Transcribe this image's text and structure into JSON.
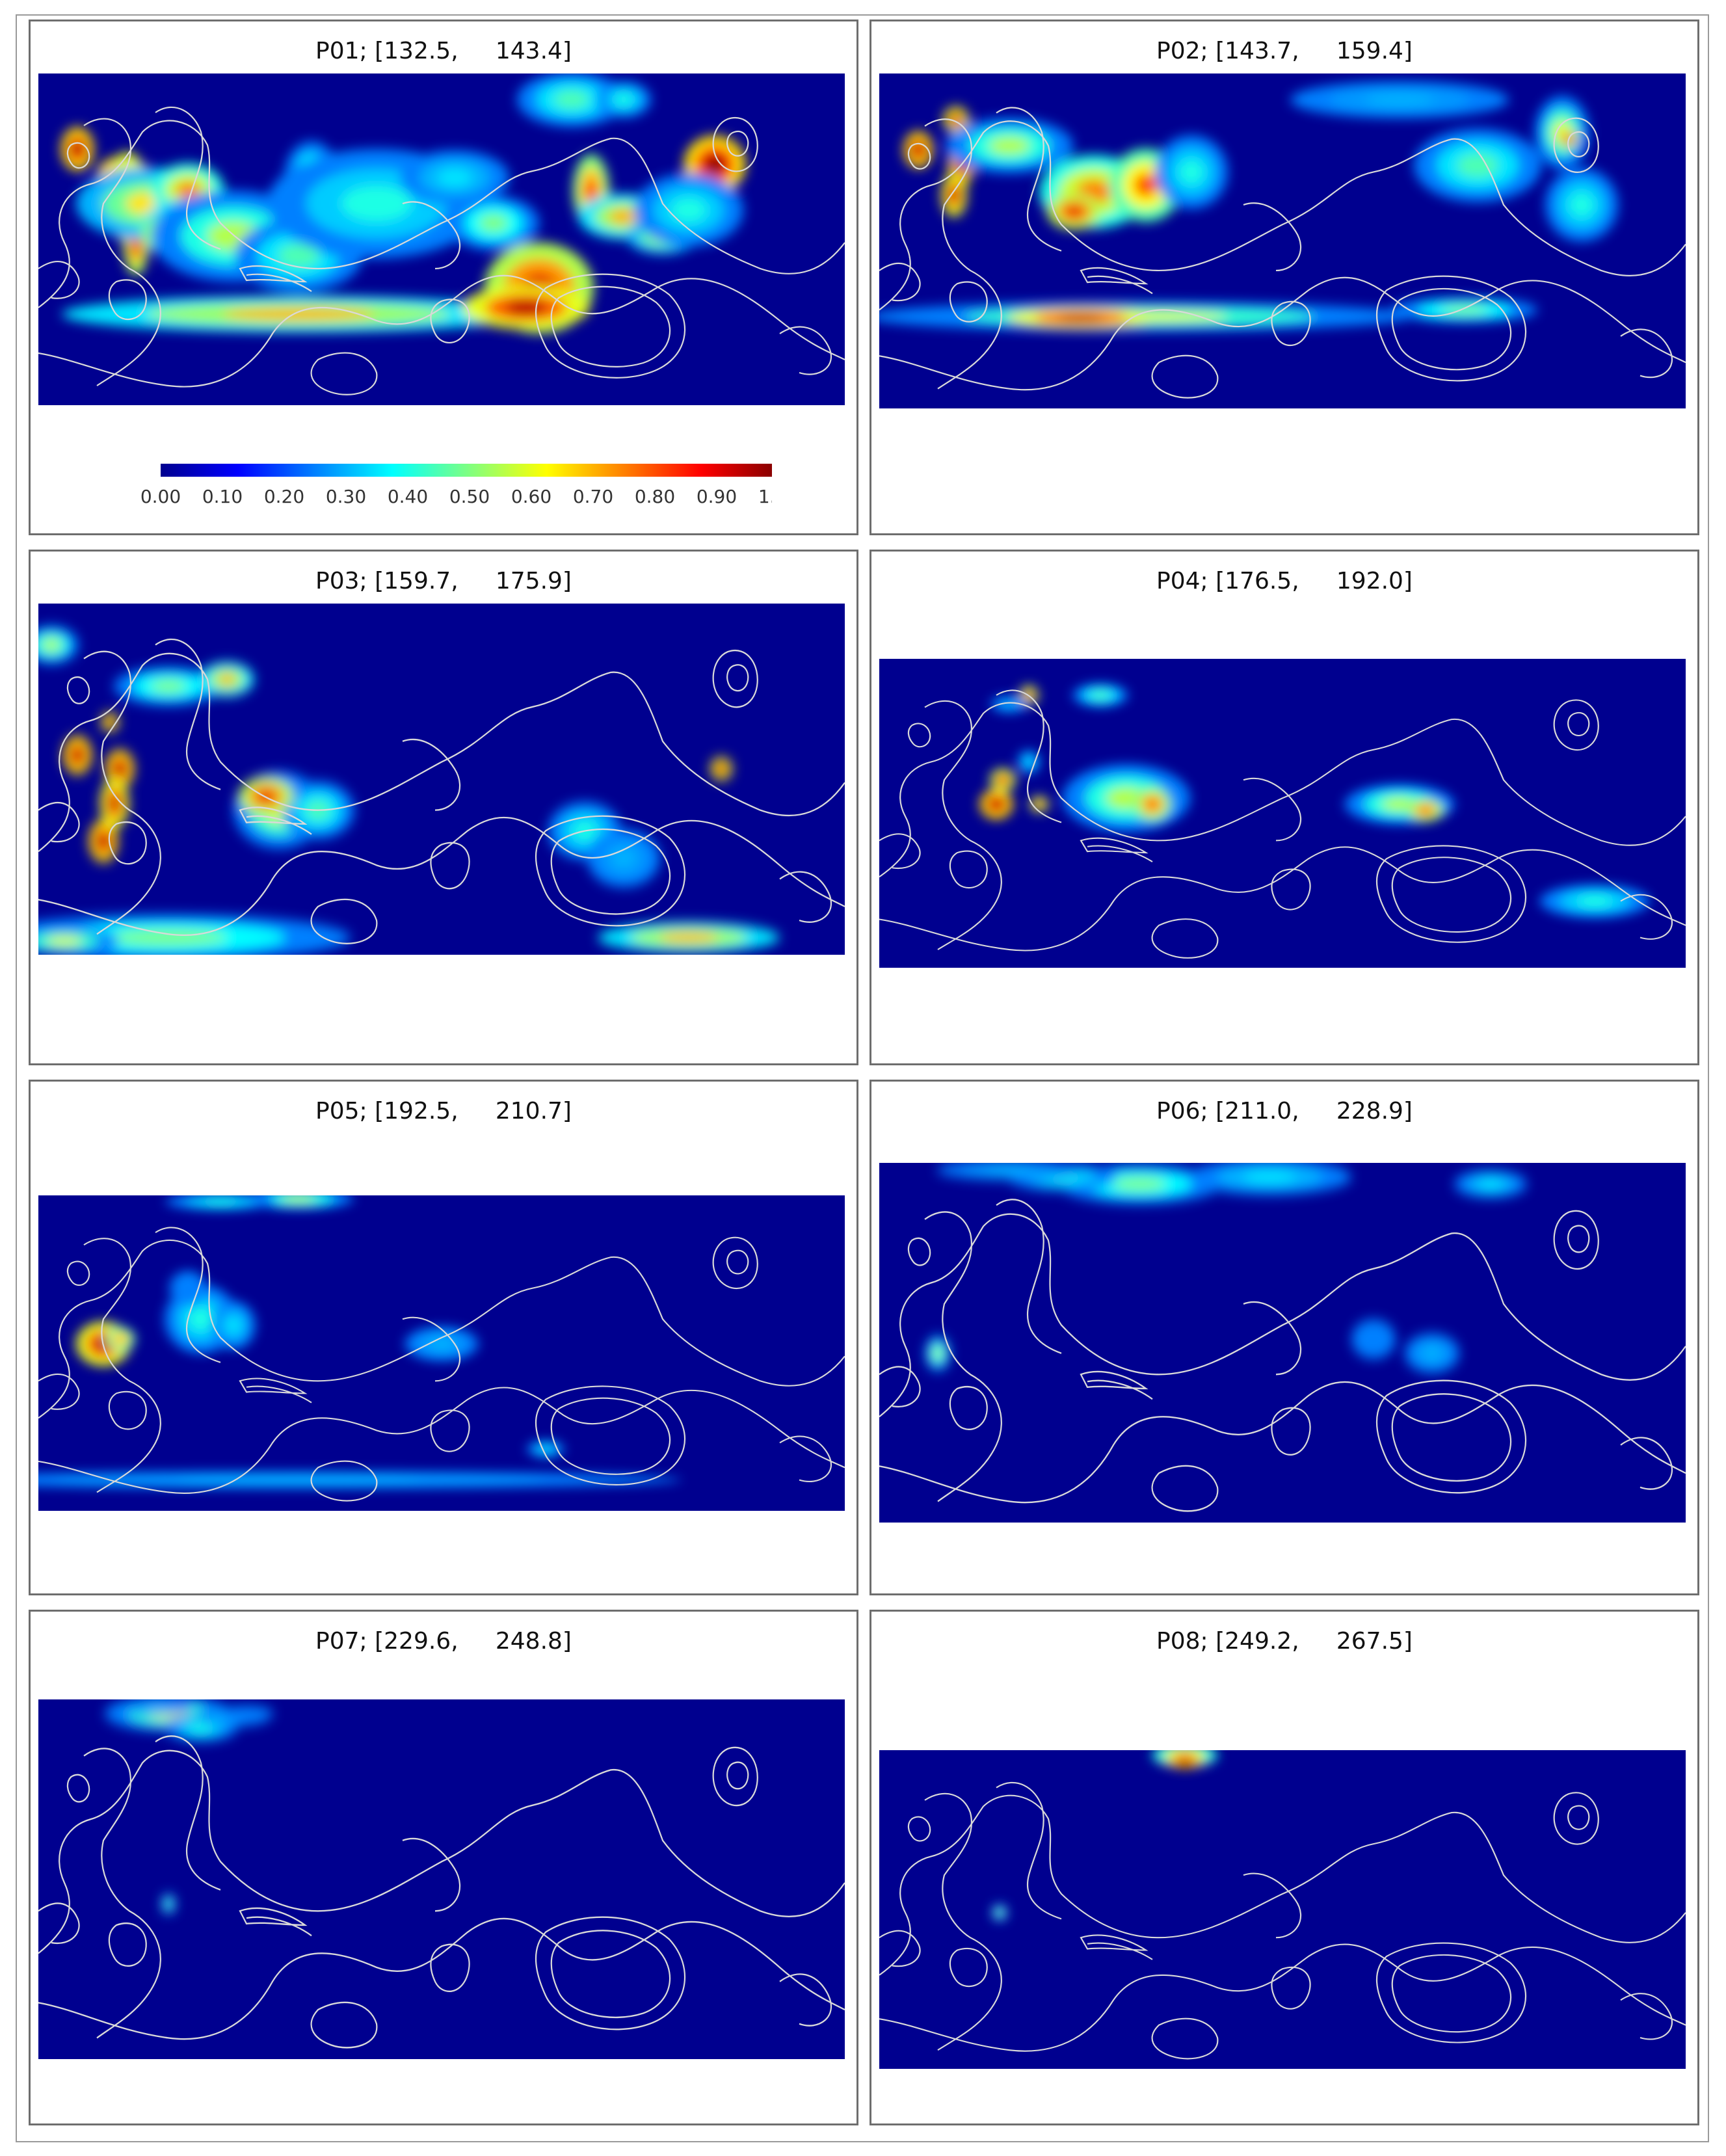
{
  "figure": {
    "panels": [
      {
        "id": "P01",
        "title": "P01; [132.5,     143.4]",
        "blobs": [
          [
            60,
            116,
            18,
            24,
            1.0
          ],
          [
            130,
            155,
            28,
            20,
            1.0
          ],
          [
            137,
            190,
            22,
            50,
            0.95
          ],
          [
            150,
            260,
            14,
            36,
            0.9
          ],
          [
            170,
            200,
            80,
            40,
            0.65
          ],
          [
            230,
            180,
            40,
            30,
            0.75
          ],
          [
            240,
            240,
            60,
            35,
            0.7
          ],
          [
            200,
            245,
            30,
            20,
            0.85
          ],
          [
            300,
            250,
            90,
            50,
            0.55
          ],
          [
            400,
            280,
            70,
            40,
            0.45
          ],
          [
            460,
            240,
            30,
            30,
            0.6
          ],
          [
            420,
            160,
            30,
            40,
            0.5
          ],
          [
            520,
            200,
            120,
            60,
            0.4
          ],
          [
            640,
            160,
            60,
            30,
            0.35
          ],
          [
            700,
            230,
            50,
            30,
            0.5
          ],
          [
            770,
            330,
            60,
            50,
            0.9
          ],
          [
            850,
            180,
            20,
            40,
            0.85
          ],
          [
            900,
            220,
            50,
            25,
            0.7
          ],
          [
            960,
            250,
            40,
            20,
            0.65
          ],
          [
            1040,
            140,
            34,
            32,
            1.0
          ],
          [
            1000,
            210,
            60,
            40,
            0.4
          ],
          [
            820,
            40,
            60,
            30,
            0.45
          ],
          [
            900,
            40,
            30,
            20,
            0.4
          ],
          [
            400,
            370,
            260,
            20,
            0.7
          ],
          [
            750,
            360,
            70,
            24,
            0.95
          ]
        ]
      },
      {
        "id": "P02",
        "title": "P02; [143.7,     159.4]",
        "blobs": [
          [
            60,
            116,
            16,
            20,
            1.0
          ],
          [
            118,
            70,
            14,
            14,
            0.95
          ],
          [
            125,
            140,
            14,
            24,
            1.0
          ],
          [
            115,
            185,
            14,
            24,
            0.95
          ],
          [
            200,
            110,
            70,
            30,
            0.55
          ],
          [
            330,
            180,
            60,
            40,
            0.75
          ],
          [
            410,
            170,
            40,
            40,
            0.8
          ],
          [
            300,
            210,
            30,
            20,
            0.9
          ],
          [
            480,
            150,
            40,
            40,
            0.4
          ],
          [
            920,
            140,
            70,
            40,
            0.45
          ],
          [
            1050,
            90,
            30,
            40,
            0.6
          ],
          [
            1060,
            100,
            10,
            8,
            1.0
          ],
          [
            1080,
            200,
            40,
            40,
            0.4
          ],
          [
            800,
            40,
            120,
            20,
            0.3
          ],
          [
            400,
            370,
            300,
            16,
            0.6
          ],
          [
            310,
            372,
            80,
            12,
            0.95
          ],
          [
            900,
            360,
            80,
            14,
            0.5
          ]
        ]
      },
      {
        "id": "P03",
        "title": "P03; [159.7,     175.9]",
        "blobs": [
          [
            60,
            220,
            16,
            20,
            1.0
          ],
          [
            110,
            172,
            10,
            10,
            0.95
          ],
          [
            125,
            240,
            16,
            20,
            1.0
          ],
          [
            117,
            290,
            16,
            26,
            0.95
          ],
          [
            100,
            345,
            16,
            22,
            1.0
          ],
          [
            20,
            60,
            30,
            20,
            0.55
          ],
          [
            200,
            120,
            60,
            20,
            0.5
          ],
          [
            290,
            110,
            30,
            18,
            0.7
          ],
          [
            370,
            300,
            50,
            40,
            0.6
          ],
          [
            430,
            300,
            40,
            30,
            0.45
          ],
          [
            350,
            280,
            30,
            20,
            0.9
          ],
          [
            1050,
            240,
            12,
            12,
            0.95
          ],
          [
            840,
            330,
            40,
            30,
            0.4
          ],
          [
            900,
            370,
            40,
            30,
            0.3
          ],
          [
            200,
            485,
            200,
            24,
            0.5
          ],
          [
            1000,
            485,
            100,
            16,
            0.7
          ],
          [
            40,
            490,
            60,
            14,
            0.6
          ]
        ]
      },
      {
        "id": "P04",
        "title": "P04; [176.5,     192.0]",
        "blobs": [
          [
            230,
            60,
            10,
            12,
            0.9
          ],
          [
            340,
            60,
            30,
            14,
            0.45
          ],
          [
            200,
            75,
            20,
            10,
            0.3
          ],
          [
            230,
            170,
            12,
            14,
            0.35
          ],
          [
            190,
            200,
            14,
            14,
            0.9
          ],
          [
            180,
            240,
            18,
            18,
            1.0
          ],
          [
            246,
            240,
            10,
            10,
            0.9
          ],
          [
            380,
            230,
            70,
            40,
            0.55
          ],
          [
            420,
            240,
            20,
            20,
            0.85
          ],
          [
            800,
            240,
            60,
            24,
            0.55
          ],
          [
            840,
            250,
            20,
            14,
            0.85
          ],
          [
            1100,
            400,
            60,
            20,
            0.4
          ]
        ]
      },
      {
        "id": "P05",
        "title": "P05; [192.5,     210.7]",
        "blobs": [
          [
            400,
            6,
            60,
            12,
            0.55
          ],
          [
            280,
            10,
            60,
            10,
            0.4
          ],
          [
            100,
            240,
            30,
            26,
            0.95
          ],
          [
            126,
            232,
            16,
            14,
            0.8
          ],
          [
            250,
            200,
            40,
            40,
            0.4
          ],
          [
            300,
            210,
            24,
            28,
            0.35
          ],
          [
            230,
            150,
            20,
            20,
            0.25
          ],
          [
            620,
            240,
            40,
            20,
            0.3
          ],
          [
            780,
            410,
            20,
            10,
            0.35
          ],
          [
            400,
            460,
            420,
            10,
            0.3
          ]
        ]
      },
      {
        "id": "P06",
        "title": "P06; [211.0,     228.9]",
        "blobs": [
          [
            400,
            30,
            90,
            20,
            0.5
          ],
          [
            280,
            20,
            60,
            14,
            0.4
          ],
          [
            600,
            20,
            90,
            18,
            0.35
          ],
          [
            940,
            30,
            40,
            14,
            0.35
          ],
          [
            200,
            10,
            80,
            10,
            0.3
          ],
          [
            90,
            270,
            14,
            18,
            0.55
          ],
          [
            850,
            270,
            30,
            20,
            0.3
          ],
          [
            760,
            250,
            24,
            20,
            0.25
          ]
        ]
      },
      {
        "id": "P07",
        "title": "P07; [229.6,     248.8]",
        "blobs": [
          [
            200,
            20,
            70,
            18,
            0.6
          ],
          [
            250,
            40,
            40,
            14,
            0.4
          ],
          [
            180,
            10,
            40,
            8,
            0.3
          ],
          [
            300,
            24,
            40,
            10,
            0.35
          ],
          [
            200,
            290,
            8,
            10,
            0.5
          ],
          [
            320,
            20,
            30,
            8,
            0.25
          ]
        ]
      },
      {
        "id": "P08",
        "title": "P08; [249.2,     267.5]",
        "blobs": [
          [
            470,
            8,
            36,
            14,
            0.75
          ],
          [
            470,
            18,
            20,
            8,
            1.0
          ],
          [
            185,
            260,
            8,
            10,
            0.55
          ]
        ]
      }
    ],
    "colorbar": {
      "ticks": [
        "0.00",
        "0.10",
        "0.20",
        "0.30",
        "0.40",
        "0.50",
        "0.60",
        "0.70",
        "0.80",
        "0.90",
        "1.00"
      ],
      "colors": [
        "#00008f",
        "#0000ff",
        "#0080ff",
        "#00ffff",
        "#80ff80",
        "#ffff00",
        "#ff8000",
        "#ff0000",
        "#800000"
      ]
    }
  }
}
